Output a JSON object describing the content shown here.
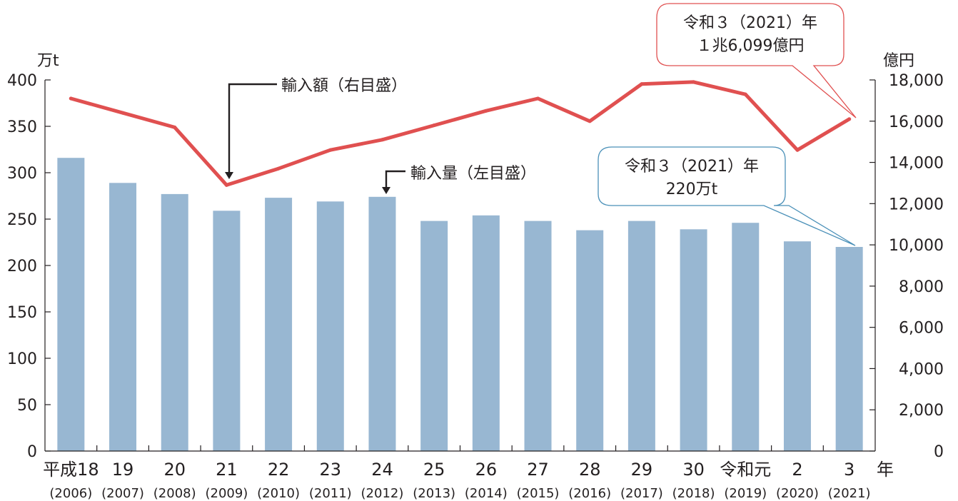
{
  "chart_data": {
    "type": "bar",
    "categories": [
      "平成18",
      "19",
      "20",
      "21",
      "22",
      "23",
      "24",
      "25",
      "26",
      "27",
      "28",
      "29",
      "30",
      "令和元",
      "2",
      "3"
    ],
    "categories_sub": [
      "(2006)",
      "(2007)",
      "(2008)",
      "(2009)",
      "(2010)",
      "(2011)",
      "(2012)",
      "(2013)",
      "(2014)",
      "(2015)",
      "(2016)",
      "(2017)",
      "(2018)",
      "(2019)",
      "(2020)",
      "(2021)"
    ],
    "x_unit": "年",
    "series": [
      {
        "name": "輸入量（左目盛）",
        "type": "bar",
        "axis": "left",
        "color": "#98b7d2",
        "values": [
          316,
          289,
          277,
          259,
          273,
          269,
          274,
          248,
          254,
          248,
          238,
          248,
          239,
          246,
          226,
          220
        ]
      },
      {
        "name": "輸入額（右目盛）",
        "type": "line",
        "axis": "right",
        "color": "#e05050",
        "values": [
          17100,
          16400,
          15700,
          12900,
          13700,
          14600,
          15100,
          15800,
          16500,
          17100,
          16000,
          17800,
          17900,
          17300,
          14600,
          16099
        ]
      }
    ],
    "y_left": {
      "label": "万t",
      "range": [
        0,
        400
      ],
      "ticks": [
        0,
        50,
        100,
        150,
        200,
        250,
        300,
        350,
        400
      ]
    },
    "y_right": {
      "label": "億円",
      "range": [
        0,
        18000
      ],
      "ticks": [
        0,
        2000,
        4000,
        6000,
        8000,
        10000,
        12000,
        14000,
        16000,
        18000
      ],
      "tick_labels": [
        "0",
        "2,000",
        "4,000",
        "6,000",
        "8,000",
        "10,000",
        "12,000",
        "14,000",
        "16,000",
        "18,000"
      ]
    },
    "annotations": {
      "amount_label": "輸入額（右目盛）",
      "volume_label": "輸入量（左目盛）",
      "callout_amount_line1": "令和３（2021）年",
      "callout_amount_line2": "１兆6,099億円",
      "callout_volume_line1": "令和３（2021）年",
      "callout_volume_line2": "220万t"
    },
    "colors": {
      "bar": "#98b7d2",
      "line": "#e05050",
      "callout_amount_border": "#e05050",
      "callout_volume_border": "#4a90b8"
    }
  }
}
